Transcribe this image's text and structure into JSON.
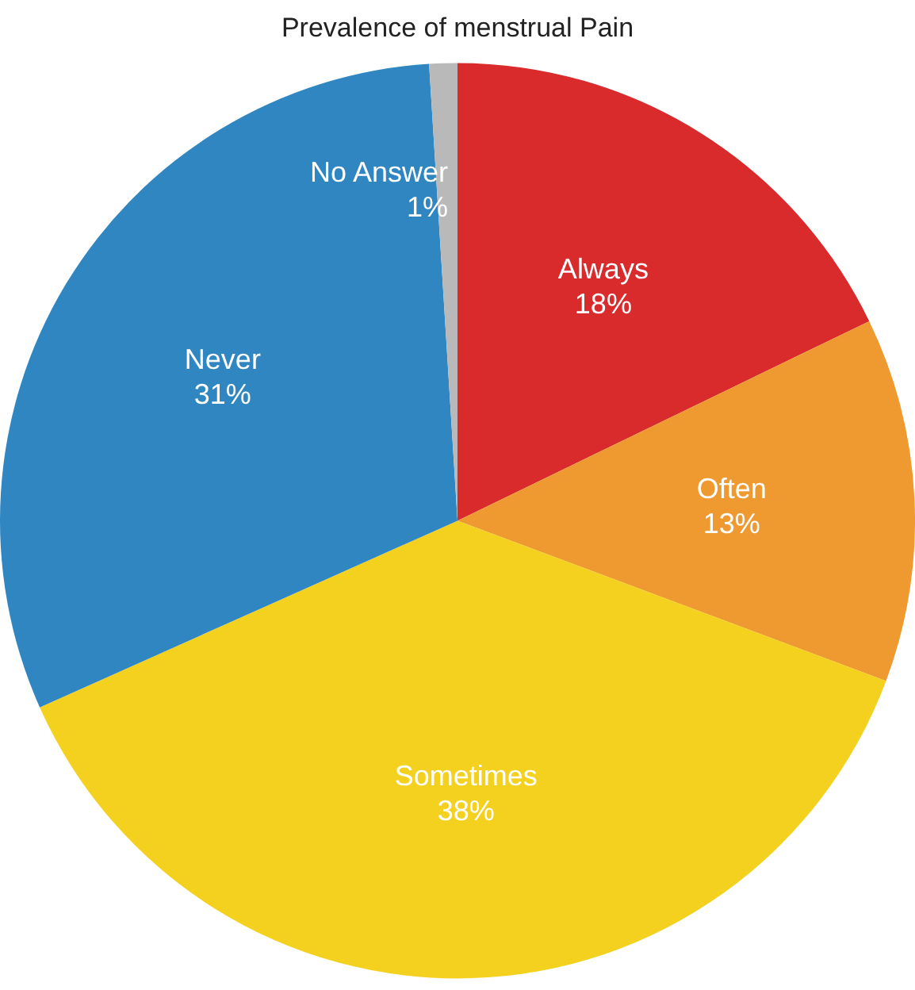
{
  "chart_data": {
    "type": "pie",
    "title": "Prevalence of menstrual Pain",
    "categories": [
      "Always",
      "Often",
      "Sometimes",
      "Never",
      "No Answer"
    ],
    "values": [
      18,
      13,
      38,
      31,
      1
    ],
    "value_labels": [
      "18%",
      "13%",
      "38%",
      "31%",
      "1%"
    ],
    "colors": [
      "#d92a2c",
      "#ee9a31",
      "#f3d11e",
      "#2f86c0",
      "#b9b9b9"
    ],
    "legend": false
  }
}
